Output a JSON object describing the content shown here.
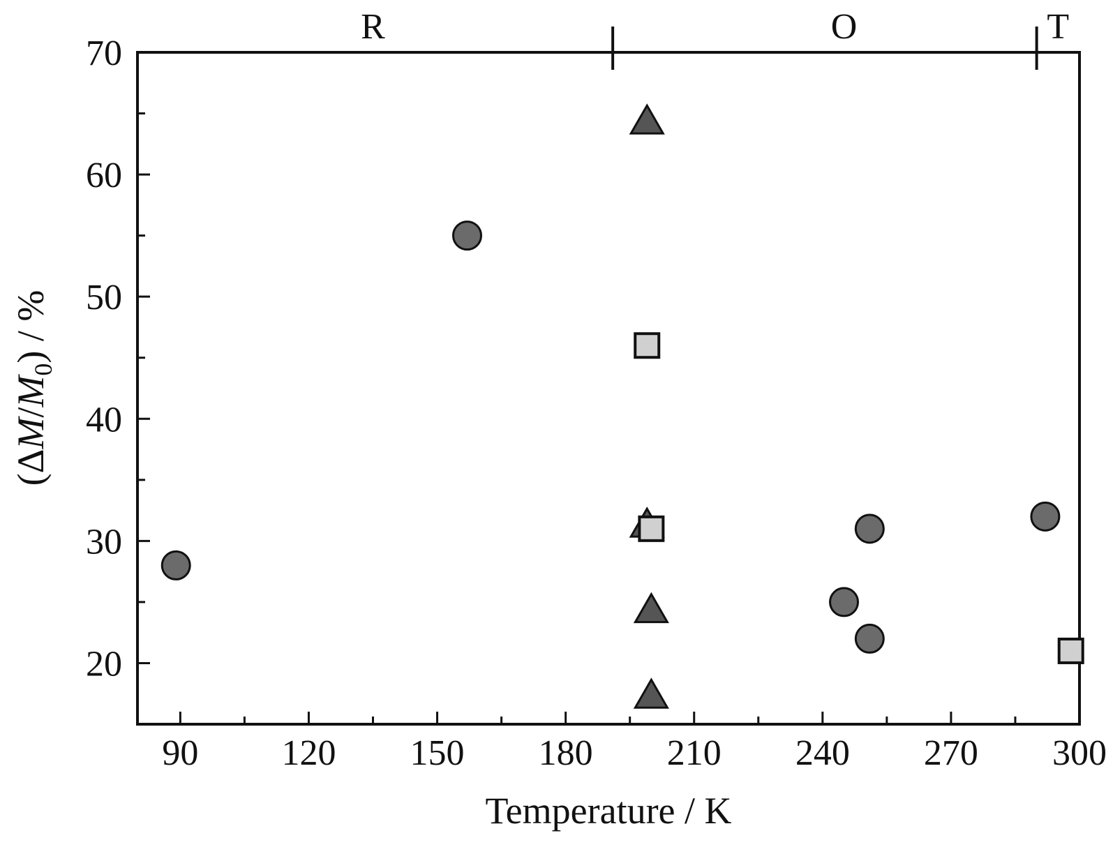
{
  "chart_data": {
    "type": "scatter",
    "xlabel": "Temperature / K",
    "ylabel": {
      "prefix": "(Δ",
      "m1": "M",
      "slash": "/",
      "m2": "M",
      "sub": "0",
      "suffix": ") / %"
    },
    "xlim": [
      80,
      300
    ],
    "ylim": [
      15,
      70
    ],
    "xticks": [
      90,
      120,
      150,
      180,
      210,
      240,
      270,
      300
    ],
    "yticks": [
      20,
      30,
      40,
      50,
      60,
      70
    ],
    "grid": false,
    "phase_regions": [
      {
        "label": "R",
        "x_center": 135
      },
      {
        "label": "O",
        "x_center": 245
      },
      {
        "label": "T",
        "x_center": 295
      }
    ],
    "phase_boundaries": [
      191,
      290
    ],
    "series": [
      {
        "marker": "circle",
        "color": "#6b6b6b",
        "points": [
          {
            "x": 89,
            "y": 28
          },
          {
            "x": 157,
            "y": 55
          },
          {
            "x": 245,
            "y": 25
          },
          {
            "x": 251,
            "y": 31
          },
          {
            "x": 251,
            "y": 22
          },
          {
            "x": 292,
            "y": 32
          }
        ]
      },
      {
        "marker": "triangle",
        "color": "#555555",
        "points": [
          {
            "x": 199,
            "y": 64.5
          },
          {
            "x": 199,
            "y": 31.5
          },
          {
            "x": 200,
            "y": 24.5
          },
          {
            "x": 200,
            "y": 17.5
          }
        ]
      },
      {
        "marker": "square",
        "color": "#d0d0d0",
        "points": [
          {
            "x": 199,
            "y": 46
          },
          {
            "x": 200,
            "y": 31
          },
          {
            "x": 298,
            "y": 21
          }
        ]
      }
    ]
  }
}
